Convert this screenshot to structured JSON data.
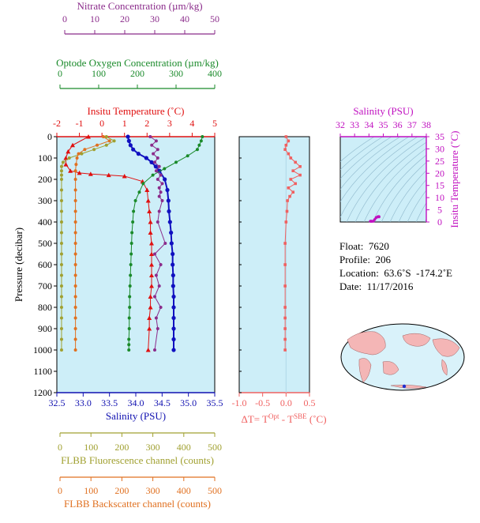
{
  "chart_data": [
    {
      "type": "line",
      "panel": "main-profile",
      "ylabel": "Pressure (decibar)",
      "yticks": [
        0,
        100,
        200,
        300,
        400,
        500,
        600,
        700,
        800,
        900,
        1000,
        1100,
        1200
      ],
      "ylim": [
        0,
        1200
      ],
      "y_inverted": true,
      "grid": false,
      "axes": [
        {
          "key": "nitrate",
          "title": "Nitrate Concentration (µm/kg)",
          "color": "#8b2c8b",
          "range": [
            0,
            50
          ],
          "ticks": [
            0,
            10,
            20,
            30,
            40,
            50
          ]
        },
        {
          "key": "oxygen",
          "title": "Optode Oxygen Concentration (µm/kg)",
          "color": "#1a8a2a",
          "range": [
            0,
            400
          ],
          "ticks": [
            0,
            100,
            200,
            300,
            400
          ]
        },
        {
          "key": "temperature",
          "title": "Insitu Temperature (˚C)",
          "color": "#e01010",
          "range": [
            -2,
            5
          ],
          "ticks": [
            -2,
            -1,
            0,
            1,
            2,
            3,
            4,
            5
          ]
        },
        {
          "key": "salinity",
          "title": "Salinity (PSU)",
          "color": "#1010b0",
          "range": [
            32.5,
            35.5
          ],
          "ticks": [
            "32.5",
            "33.0",
            "33.5",
            "34.0",
            "34.5",
            "35.0",
            "35.5"
          ]
        },
        {
          "key": "fluorescence",
          "title": "FLBB Fluorescence channel (counts)",
          "color": "#a0a030",
          "range": [
            0,
            500
          ],
          "ticks": [
            0,
            100,
            200,
            300,
            400,
            500
          ]
        },
        {
          "key": "backscatter",
          "title": "FLBB Backscatter channel (counts)",
          "color": "#e07020",
          "range": [
            0,
            500
          ],
          "ticks": [
            0,
            100,
            200,
            300,
            400,
            500
          ]
        }
      ],
      "series": [
        {
          "axis": "temperature",
          "color": "#e01010",
          "marker": "triangle",
          "x": [
            -0.6,
            -1.3,
            -1.5,
            -1.6,
            -1.6,
            -1.4,
            -1.0,
            -0.5,
            0.3,
            1.0,
            1.8,
            2.0,
            2.05,
            2.1,
            2.15,
            2.15,
            2.2,
            2.2,
            2.2,
            2.2,
            2.2,
            2.15,
            2.15,
            2.1,
            2.1,
            2.05
          ],
          "y": [
            0,
            40,
            70,
            100,
            130,
            160,
            170,
            175,
            180,
            185,
            210,
            250,
            300,
            350,
            400,
            450,
            500,
            550,
            600,
            650,
            700,
            750,
            800,
            850,
            900,
            1000
          ]
        },
        {
          "axis": "salinity",
          "color": "#1010c0",
          "marker": "circle",
          "x": [
            33.85,
            33.87,
            33.9,
            33.95,
            34.05,
            34.2,
            34.3,
            34.38,
            34.45,
            34.55,
            34.6,
            34.62,
            34.63,
            34.65,
            34.67,
            34.68,
            34.7,
            34.7,
            34.71,
            34.71,
            34.72,
            34.72,
            34.72,
            34.72,
            34.72,
            34.72
          ],
          "y": [
            0,
            20,
            40,
            60,
            80,
            100,
            120,
            140,
            160,
            200,
            250,
            300,
            350,
            400,
            450,
            500,
            550,
            600,
            650,
            700,
            750,
            800,
            850,
            900,
            950,
            1000
          ]
        },
        {
          "axis": "oxygen",
          "color": "#1a8a2a",
          "marker": "circle",
          "x": [
            368,
            365,
            360,
            355,
            330,
            300,
            270,
            240,
            215,
            205,
            195,
            190,
            188,
            186,
            185,
            184,
            183,
            182,
            181,
            180,
            180,
            179,
            179,
            178,
            178,
            178
          ],
          "y": [
            0,
            20,
            40,
            60,
            90,
            120,
            150,
            180,
            220,
            260,
            300,
            350,
            400,
            450,
            500,
            550,
            600,
            650,
            700,
            750,
            800,
            850,
            900,
            950,
            975,
            1000
          ]
        },
        {
          "axis": "nitrate",
          "color": "#8b2c8b",
          "marker": "circle",
          "x": [
            28.5,
            30.5,
            29,
            31,
            29.5,
            31,
            30,
            31.5,
            30.5,
            32,
            31,
            32.5,
            31.5,
            32,
            31.5,
            32.5,
            31.5,
            31,
            33.5,
            30,
            32,
            30.5,
            31.5,
            30,
            32,
            30.5,
            31,
            30
          ],
          "y": [
            0,
            20,
            40,
            60,
            80,
            100,
            120,
            140,
            160,
            180,
            200,
            220,
            240,
            260,
            280,
            300,
            350,
            400,
            500,
            550,
            600,
            650,
            700,
            750,
            800,
            850,
            900,
            1000
          ]
        },
        {
          "axis": "fluorescence",
          "color": "#a0a030",
          "marker": "circle",
          "x": [
            150,
            175,
            150,
            110,
            70,
            30,
            10,
            5,
            5,
            5,
            5,
            5,
            5,
            5,
            5,
            5,
            5,
            5,
            5,
            5,
            5,
            5,
            5,
            5,
            5,
            5,
            5
          ],
          "y": [
            0,
            20,
            40,
            60,
            80,
            100,
            120,
            140,
            160,
            180,
            200,
            250,
            300,
            350,
            400,
            450,
            500,
            550,
            600,
            650,
            700,
            750,
            800,
            850,
            900,
            950,
            1000
          ]
        },
        {
          "axis": "backscatter",
          "color": "#e07020",
          "marker": "circle",
          "x": [
            140,
            160,
            120,
            80,
            60,
            55,
            52,
            50,
            50,
            50,
            50,
            50,
            50,
            50,
            50,
            50,
            50,
            50,
            50,
            50,
            50,
            50,
            50,
            50,
            50
          ],
          "y": [
            0,
            20,
            40,
            60,
            80,
            100,
            130,
            160,
            200,
            250,
            300,
            350,
            400,
            450,
            500,
            550,
            600,
            650,
            700,
            750,
            800,
            850,
            900,
            950,
            1000
          ]
        }
      ]
    },
    {
      "type": "line",
      "panel": "delta-t",
      "xlabel": "ΔT= T",
      "xlabel_sup1": "Opt",
      "xlabel_mid": " - T",
      "xlabel_sup2": "SBE",
      "xlabel_tail": " (˚C)",
      "xlim": [
        -1.0,
        0.5
      ],
      "xticks": [
        "-1.0",
        "-0.5",
        "0.0",
        "0.5"
      ],
      "ylim": [
        0,
        1200
      ],
      "color": "#f06060",
      "x": [
        0.0,
        0.05,
        0.0,
        -0.02,
        0.05,
        0.1,
        0.2,
        0.3,
        0.15,
        0.3,
        0.1,
        0.2,
        0.05,
        0.15,
        0.08,
        0.03,
        0.02,
        0.0,
        -0.02,
        -0.02,
        -0.02,
        -0.02,
        -0.02,
        -0.02,
        -0.02,
        -0.02
      ],
      "y": [
        0,
        20,
        40,
        60,
        80,
        100,
        120,
        140,
        160,
        180,
        200,
        220,
        240,
        260,
        280,
        300,
        350,
        400,
        500,
        600,
        700,
        800,
        850,
        900,
        950,
        1000
      ]
    },
    {
      "type": "scatter",
      "panel": "ts-diagram",
      "title": "Salinity (PSU)",
      "ylabel": "Insitu Temperature (˚C)",
      "title_color": "#c010c0",
      "xlim": [
        32,
        38
      ],
      "xticks": [
        32,
        33,
        34,
        35,
        36,
        37,
        38
      ],
      "ylim": [
        0,
        35
      ],
      "yticks": [
        0,
        5,
        10,
        15,
        20,
        25,
        30,
        35
      ],
      "x": [
        34.1,
        34.15,
        34.2,
        34.3,
        34.4,
        34.5,
        34.6,
        34.65,
        34.7,
        34.7
      ],
      "y": [
        -1.6,
        -1.2,
        -0.5,
        0.3,
        1.0,
        1.8,
        2.1,
        2.2,
        2.2,
        2.1
      ]
    }
  ],
  "info": {
    "float": "Float:  7620",
    "profile": "Profile:  206",
    "location": "Location:  63.6˚S  -174.2˚E",
    "date": "Date:  11/17/2016"
  },
  "colors": {
    "plot_bg": "#cdeef8",
    "map_land": "#f4b6b6",
    "map_ocean": "#d9f2fa",
    "marker": "#2030d0"
  }
}
